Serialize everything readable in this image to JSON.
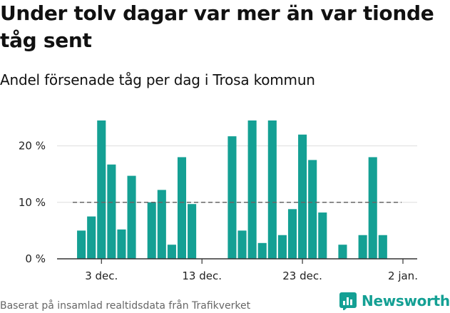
{
  "title": "Under tolv dagar var mer än var tionde tåg sent",
  "subtitle": "Andel försenade tåg per dag i Trosa kommun",
  "footer": "Baserat på insamlad realtidsdata från Trafikverket",
  "logo_text": "Newsworthy",
  "colors": {
    "bar": "#14a094",
    "axis": "#333333",
    "grid": "#dddddd",
    "reference": "#666666",
    "brand": "#14a094"
  },
  "chart_data": {
    "type": "bar",
    "title": "Under tolv dagar var mer än var tionde tåg sent",
    "subtitle": "Andel försenade tåg per dag i Trosa kommun",
    "xlabel": "",
    "ylabel": "",
    "x_range": [
      "2023-11-30",
      "2024-01-02"
    ],
    "x_ticks": [
      {
        "date": "2023-12-03",
        "label": "3 dec."
      },
      {
        "date": "2023-12-13",
        "label": "13 dec."
      },
      {
        "date": "2023-12-23",
        "label": "23 dec."
      },
      {
        "date": "2024-01-02",
        "label": "2 jan."
      }
    ],
    "ylim": [
      0,
      0.25
    ],
    "y_ticks": [
      {
        "value": 0,
        "label": "0 %"
      },
      {
        "value": 0.1,
        "label": "10 %"
      },
      {
        "value": 0.2,
        "label": "20 %"
      }
    ],
    "reference_line": 0.1,
    "grid": true,
    "series": [
      {
        "dates": [
          "2023-12-01",
          "2023-12-02",
          "2023-12-03",
          "2023-12-04",
          "2023-12-05",
          "2023-12-06",
          "2023-12-08",
          "2023-12-09",
          "2023-12-10",
          "2023-12-11",
          "2023-12-12",
          "2023-12-16",
          "2023-12-17",
          "2023-12-18",
          "2023-12-19",
          "2023-12-20",
          "2023-12-21",
          "2023-12-22",
          "2023-12-23",
          "2023-12-24",
          "2023-12-25",
          "2023-12-27",
          "2023-12-29",
          "2023-12-30",
          "2023-12-31"
        ],
        "values": [
          0.05,
          0.075,
          0.245,
          0.167,
          0.052,
          0.147,
          0.1,
          0.122,
          0.025,
          0.18,
          0.097,
          0.217,
          0.05,
          0.245,
          0.028,
          0.245,
          0.042,
          0.088,
          0.22,
          0.175,
          0.082,
          0.025,
          0.042,
          0.18,
          0.042
        ]
      }
    ]
  }
}
